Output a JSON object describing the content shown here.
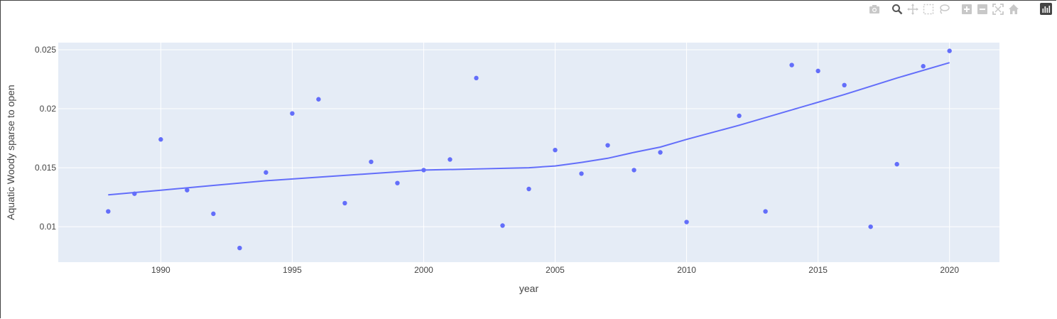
{
  "colors": {
    "marker": "#636efa",
    "line": "#636efa",
    "plot_bg": "#e5ecf6",
    "grid": "#ffffff"
  },
  "modebar": {
    "icons": [
      "camera-icon",
      "zoom-icon",
      "pan-icon",
      "box-select-icon",
      "lasso-icon",
      "zoom-in-icon",
      "zoom-out-icon",
      "autoscale-icon",
      "home-icon"
    ],
    "logo": "plotly-logo"
  },
  "chart_data": {
    "type": "scatter",
    "xlabel": "year",
    "ylabel": "Aquatic Woody sparse to open",
    "xlim": [
      1986.1,
      2021.9
    ],
    "ylim": [
      0.007,
      0.0256
    ],
    "xticks": [
      1990,
      1995,
      2000,
      2005,
      2010,
      2015,
      2020
    ],
    "yticks": [
      0.01,
      0.015,
      0.02,
      0.025
    ],
    "ytick_labels": [
      "0.01",
      "0.015",
      "0.02",
      "0.025"
    ],
    "grid": true,
    "legend": "none",
    "series": [
      {
        "mode": "markers",
        "x": [
          1988,
          1989,
          1990,
          1991,
          1992,
          1993,
          1994,
          1995,
          1996,
          1997,
          1998,
          1999,
          2000,
          2001,
          2002,
          2003,
          2004,
          2005,
          2006,
          2007,
          2008,
          2009,
          2010,
          2012,
          2013,
          2014,
          2015,
          2016,
          2017,
          2018,
          2019,
          2020
        ],
        "y": [
          0.0113,
          0.0128,
          0.0174,
          0.0131,
          0.0111,
          0.0082,
          0.0146,
          0.0196,
          0.0208,
          0.012,
          0.0155,
          0.0137,
          0.0148,
          0.0157,
          0.0226,
          0.0101,
          0.0132,
          0.0165,
          0.0145,
          0.0169,
          0.0148,
          0.0163,
          0.0104,
          0.0194,
          0.0113,
          0.0237,
          0.0232,
          0.022,
          0.01,
          0.0153,
          0.0236,
          0.0249
        ]
      },
      {
        "mode": "lines",
        "x": [
          1988,
          1990,
          1992,
          1994,
          1996,
          1998,
          2000,
          2002,
          2004,
          2005,
          2006,
          2007,
          2008,
          2009,
          2010,
          2012,
          2014,
          2016,
          2018,
          2020
        ],
        "y": [
          0.0127,
          0.0131,
          0.0135,
          0.0139,
          0.0142,
          0.0145,
          0.0148,
          0.0149,
          0.015,
          0.01515,
          0.01545,
          0.0158,
          0.0163,
          0.01675,
          0.0174,
          0.0186,
          0.0199,
          0.0212,
          0.0226,
          0.0239
        ]
      }
    ]
  }
}
